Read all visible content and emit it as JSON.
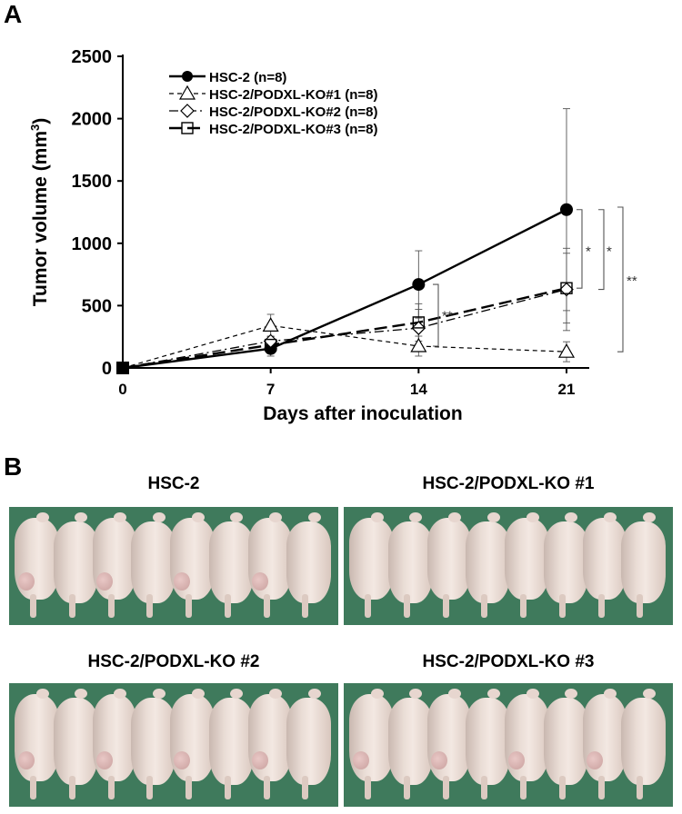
{
  "panels": {
    "a_label": "A",
    "b_label": "B"
  },
  "chart_data": {
    "type": "line",
    "title": "",
    "xlabel": "Days after inoculation",
    "ylabel": "Tumor volume (mm",
    "ylabel_superscript": "3",
    "ylabel_suffix": ")",
    "x": [
      0,
      7,
      14,
      21
    ],
    "xlim": [
      0,
      21
    ],
    "ylim": [
      0,
      2500
    ],
    "yticks": [
      0,
      500,
      1000,
      1500,
      2000,
      2500
    ],
    "grid": false,
    "legend_position": "top-left",
    "series": [
      {
        "name": "HSC-2 (n=8)",
        "marker": "filled-circle",
        "dash": "solid",
        "values": [
          0,
          155,
          670,
          1270
        ],
        "err": [
          10,
          60,
          270,
          810
        ]
      },
      {
        "name": "HSC-2/PODXL-KO#1 (n=8)",
        "marker": "open-triangle",
        "dash": "short-dash",
        "values": [
          0,
          340,
          175,
          130
        ],
        "err": [
          10,
          90,
          80,
          80
        ]
      },
      {
        "name": "HSC-2/PODXL-KO#2 (n=8)",
        "marker": "open-diamond",
        "dash": "dash-dot",
        "values": [
          0,
          215,
          320,
          630
        ],
        "err": [
          10,
          80,
          150,
          330
        ]
      },
      {
        "name": "HSC-2/PODXL-KO#3 (n=8)",
        "marker": "open-square",
        "dash": "long-dash",
        "values": [
          0,
          185,
          365,
          640
        ],
        "err": [
          10,
          70,
          150,
          280
        ]
      }
    ],
    "annotations": [
      {
        "text": "**",
        "between": "HSC-2 vs PODXL-KO#1/#2/#3",
        "day": 14
      },
      {
        "text": "*",
        "between": "HSC-2 vs PODXL-KO#3",
        "day": 21
      },
      {
        "text": "*",
        "between": "HSC-2 vs PODXL-KO#2",
        "day": 21
      },
      {
        "text": "**",
        "between": "HSC-2 vs PODXL-KO#1",
        "day": 21
      }
    ]
  },
  "photos": [
    {
      "title": "HSC-2",
      "mice": 8
    },
    {
      "title": "HSC-2/PODXL-KO #1",
      "mice": 8
    },
    {
      "title": "HSC-2/PODXL-KO #2",
      "mice": 8
    },
    {
      "title": "HSC-2/PODXL-KO #3",
      "mice": 8
    }
  ],
  "colors": {
    "background": "#3f7a5c",
    "mouse_skin": "#eaddd6"
  }
}
